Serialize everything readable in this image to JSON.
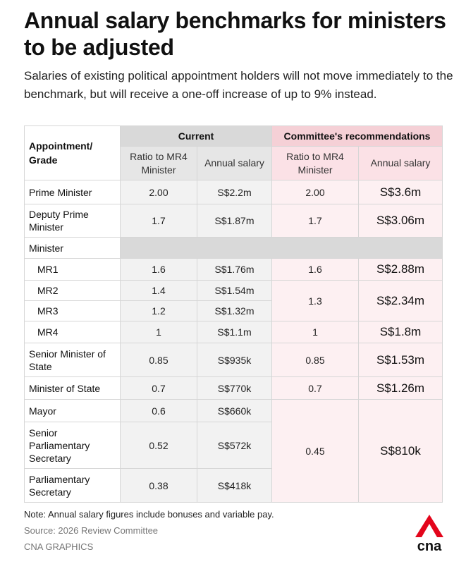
{
  "title": "Annual salary benchmarks for ministers to be adjusted",
  "subtitle": "Salaries of existing political appointment holders will not move immediately to the benchmark, but will receive a one-off increase of up to 9% instead.",
  "chart_data": {
    "type": "table",
    "headers": {
      "grade": "Appointment/ Grade",
      "current": "Current",
      "committee": "Committee's recommendations",
      "ratio": "Ratio to MR4 Minister",
      "salary": "Annual salary"
    },
    "rows": [
      {
        "grade": "Prime Minister",
        "cur_ratio": "2.00",
        "cur_salary": "S$2.2m",
        "new_ratio": "2.00",
        "new_salary": "S$3.6m"
      },
      {
        "grade": "Deputy Prime Minister",
        "cur_ratio": "1.7",
        "cur_salary": "S$1.87m",
        "new_ratio": "1.7",
        "new_salary": "S$3.06m"
      },
      {
        "grade": "Minister"
      },
      {
        "grade": "MR1",
        "cur_ratio": "1.6",
        "cur_salary": "S$1.76m",
        "new_ratio": "1.6",
        "new_salary": "S$2.88m"
      },
      {
        "grade": "MR2",
        "cur_ratio": "1.4",
        "cur_salary": "S$1.54m",
        "new_ratio": "1.3",
        "new_salary": "S$2.34m"
      },
      {
        "grade": "MR3",
        "cur_ratio": "1.2",
        "cur_salary": "S$1.32m"
      },
      {
        "grade": "MR4",
        "cur_ratio": "1",
        "cur_salary": "S$1.1m",
        "new_ratio": "1",
        "new_salary": "S$1.8m"
      },
      {
        "grade": "Senior Minister of State",
        "cur_ratio": "0.85",
        "cur_salary": "S$935k",
        "new_ratio": "0.85",
        "new_salary": "S$1.53m"
      },
      {
        "grade": "Minister of State",
        "cur_ratio": "0.7",
        "cur_salary": "S$770k",
        "new_ratio": "0.7",
        "new_salary": "S$1.26m"
      },
      {
        "grade": "Mayor",
        "cur_ratio": "0.6",
        "cur_salary": "S$660k",
        "new_ratio": "0.45",
        "new_salary": "S$810k"
      },
      {
        "grade": "Senior Parliamentary Secretary",
        "cur_ratio": "0.52",
        "cur_salary": "S$572k"
      },
      {
        "grade": "Parliamentary Secretary",
        "cur_ratio": "0.38",
        "cur_salary": "S$418k"
      }
    ]
  },
  "footer": {
    "note": "Note: Annual salary figures include bonuses and variable pay.",
    "source": "Source: 2026 Review Committee",
    "credit": "CNA GRAPHICS"
  },
  "logo": {
    "text": "cna",
    "accent_color": "#e3051b"
  },
  "colors": {
    "current_header": "#d9d9d9",
    "committee_header": "#f5d0d6",
    "current_cell": "#f2f2f2",
    "committee_cell": "#fdf0f2"
  }
}
